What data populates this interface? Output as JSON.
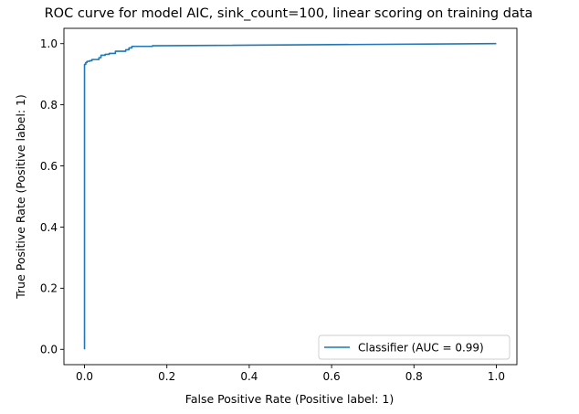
{
  "chart_data": {
    "type": "line",
    "title": "ROC curve for model AIC, sink_count=100, linear scoring on training data",
    "xlabel": "False Positive Rate (Positive label: 1)",
    "ylabel": "True Positive Rate (Positive label: 1)",
    "xlim": [
      -0.05,
      1.05
    ],
    "ylim": [
      -0.05,
      1.05
    ],
    "xticks": [
      0.0,
      0.2,
      0.4,
      0.6,
      0.8,
      1.0
    ],
    "xtick_labels": [
      "0.0",
      "0.2",
      "0.4",
      "0.6",
      "0.8",
      "1.0"
    ],
    "yticks": [
      0.0,
      0.2,
      0.4,
      0.6,
      0.8,
      1.0
    ],
    "ytick_labels": [
      "0.0",
      "0.2",
      "0.4",
      "0.6",
      "0.8",
      "1.0"
    ],
    "grid": false,
    "legend_position": "lower-right",
    "series": [
      {
        "name": "Classifier (AUC = 0.99)",
        "color": "#1f77b4",
        "x": [
          0.0,
          0.0,
          0.003,
          0.003,
          0.006,
          0.006,
          0.012,
          0.012,
          0.018,
          0.018,
          0.035,
          0.035,
          0.04,
          0.04,
          0.05,
          0.05,
          0.06,
          0.06,
          0.075,
          0.075,
          0.1,
          0.1,
          0.108,
          0.108,
          0.115,
          0.115,
          0.165,
          0.165,
          1.0
        ],
        "y": [
          0.0,
          0.932,
          0.932,
          0.938,
          0.938,
          0.942,
          0.942,
          0.944,
          0.944,
          0.948,
          0.948,
          0.954,
          0.954,
          0.962,
          0.962,
          0.965,
          0.965,
          0.968,
          0.968,
          0.975,
          0.975,
          0.98,
          0.98,
          0.986,
          0.986,
          0.991,
          0.991,
          0.993,
          1.0
        ]
      }
    ]
  }
}
